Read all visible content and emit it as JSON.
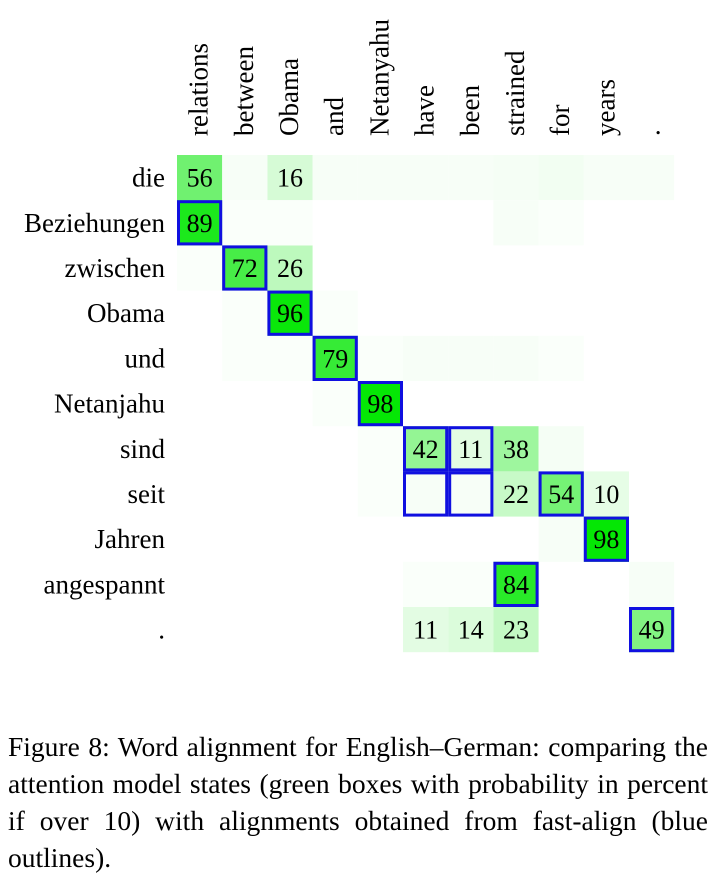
{
  "chart_data": {
    "type": "heatmap",
    "x_labels": [
      "relations",
      "between",
      "Obama",
      "and",
      "Netanyahu",
      "have",
      "been",
      "strained",
      "for",
      "years",
      "."
    ],
    "y_labels": [
      "die",
      "Beziehungen",
      "zwischen",
      "Obama",
      "und",
      "Netanjahu",
      "sind",
      "seit",
      "Jahren",
      "angespannt",
      "."
    ],
    "cells": [
      {
        "row": 0,
        "col": 0,
        "value": 56,
        "label": "56"
      },
      {
        "row": 0,
        "col": 2,
        "value": 16,
        "label": "16"
      },
      {
        "row": 1,
        "col": 0,
        "value": 89,
        "label": "89"
      },
      {
        "row": 2,
        "col": 1,
        "value": 72,
        "label": "72"
      },
      {
        "row": 2,
        "col": 2,
        "value": 26,
        "label": "26"
      },
      {
        "row": 3,
        "col": 2,
        "value": 96,
        "label": "96"
      },
      {
        "row": 4,
        "col": 3,
        "value": 79,
        "label": "79"
      },
      {
        "row": 5,
        "col": 4,
        "value": 98,
        "label": "98"
      },
      {
        "row": 6,
        "col": 5,
        "value": 42,
        "label": "42"
      },
      {
        "row": 6,
        "col": 6,
        "value": 11,
        "label": "11"
      },
      {
        "row": 6,
        "col": 7,
        "value": 38,
        "label": "38"
      },
      {
        "row": 7,
        "col": 7,
        "value": 22,
        "label": "22"
      },
      {
        "row": 7,
        "col": 8,
        "value": 54,
        "label": "54"
      },
      {
        "row": 7,
        "col": 9,
        "value": 10,
        "label": "10"
      },
      {
        "row": 8,
        "col": 9,
        "value": 98,
        "label": "98"
      },
      {
        "row": 9,
        "col": 7,
        "value": 84,
        "label": "84"
      },
      {
        "row": 10,
        "col": 5,
        "value": 11,
        "label": "11"
      },
      {
        "row": 10,
        "col": 6,
        "value": 14,
        "label": "14"
      },
      {
        "row": 10,
        "col": 7,
        "value": 23,
        "label": "23"
      },
      {
        "row": 10,
        "col": 10,
        "value": 49,
        "label": "49"
      },
      {
        "row": 0,
        "col": 1,
        "value": 3,
        "label": ""
      },
      {
        "row": 0,
        "col": 3,
        "value": 3,
        "label": ""
      },
      {
        "row": 0,
        "col": 4,
        "value": 3,
        "label": ""
      },
      {
        "row": 0,
        "col": 5,
        "value": 3,
        "label": ""
      },
      {
        "row": 0,
        "col": 6,
        "value": 3,
        "label": ""
      },
      {
        "row": 0,
        "col": 7,
        "value": 4,
        "label": ""
      },
      {
        "row": 0,
        "col": 8,
        "value": 5,
        "label": ""
      },
      {
        "row": 0,
        "col": 9,
        "value": 3,
        "label": ""
      },
      {
        "row": 0,
        "col": 10,
        "value": 3,
        "label": ""
      },
      {
        "row": 1,
        "col": 1,
        "value": 2,
        "label": ""
      },
      {
        "row": 1,
        "col": 2,
        "value": 2,
        "label": ""
      },
      {
        "row": 1,
        "col": 7,
        "value": 3,
        "label": ""
      },
      {
        "row": 1,
        "col": 8,
        "value": 2,
        "label": ""
      },
      {
        "row": 2,
        "col": 0,
        "value": 2,
        "label": ""
      },
      {
        "row": 3,
        "col": 1,
        "value": 2,
        "label": ""
      },
      {
        "row": 3,
        "col": 3,
        "value": 2,
        "label": ""
      },
      {
        "row": 4,
        "col": 1,
        "value": 2,
        "label": ""
      },
      {
        "row": 4,
        "col": 2,
        "value": 2,
        "label": ""
      },
      {
        "row": 4,
        "col": 4,
        "value": 2,
        "label": ""
      },
      {
        "row": 4,
        "col": 5,
        "value": 3,
        "label": ""
      },
      {
        "row": 4,
        "col": 6,
        "value": 3,
        "label": ""
      },
      {
        "row": 4,
        "col": 7,
        "value": 3,
        "label": ""
      },
      {
        "row": 4,
        "col": 8,
        "value": 2,
        "label": ""
      },
      {
        "row": 5,
        "col": 3,
        "value": 2,
        "label": ""
      },
      {
        "row": 6,
        "col": 4,
        "value": 2,
        "label": ""
      },
      {
        "row": 6,
        "col": 8,
        "value": 4,
        "label": ""
      },
      {
        "row": 7,
        "col": 4,
        "value": 2,
        "label": ""
      },
      {
        "row": 7,
        "col": 5,
        "value": 3,
        "label": ""
      },
      {
        "row": 7,
        "col": 6,
        "value": 3,
        "label": ""
      },
      {
        "row": 8,
        "col": 8,
        "value": 3,
        "label": ""
      },
      {
        "row": 9,
        "col": 5,
        "value": 2,
        "label": ""
      },
      {
        "row": 9,
        "col": 6,
        "value": 2,
        "label": ""
      },
      {
        "row": 9,
        "col": 10,
        "value": 3,
        "label": ""
      }
    ],
    "outlined": [
      {
        "row": 1,
        "col": 0
      },
      {
        "row": 2,
        "col": 1
      },
      {
        "row": 3,
        "col": 2
      },
      {
        "row": 4,
        "col": 3
      },
      {
        "row": 5,
        "col": 4
      },
      {
        "row": 6,
        "col": 5
      },
      {
        "row": 6,
        "col": 6
      },
      {
        "row": 7,
        "col": 5
      },
      {
        "row": 7,
        "col": 6
      },
      {
        "row": 7,
        "col": 8
      },
      {
        "row": 8,
        "col": 9
      },
      {
        "row": 9,
        "col": 7
      },
      {
        "row": 10,
        "col": 10
      }
    ],
    "colors": {
      "cell_max": "#00e600",
      "cell_min": "#ffffff",
      "outline": "#1010e0"
    }
  },
  "caption": "Figure 8: Word alignment for English–German: comparing the attention model states (green boxes with probability in percent if over 10) with alignments obtained from fast-align (blue outlines)."
}
